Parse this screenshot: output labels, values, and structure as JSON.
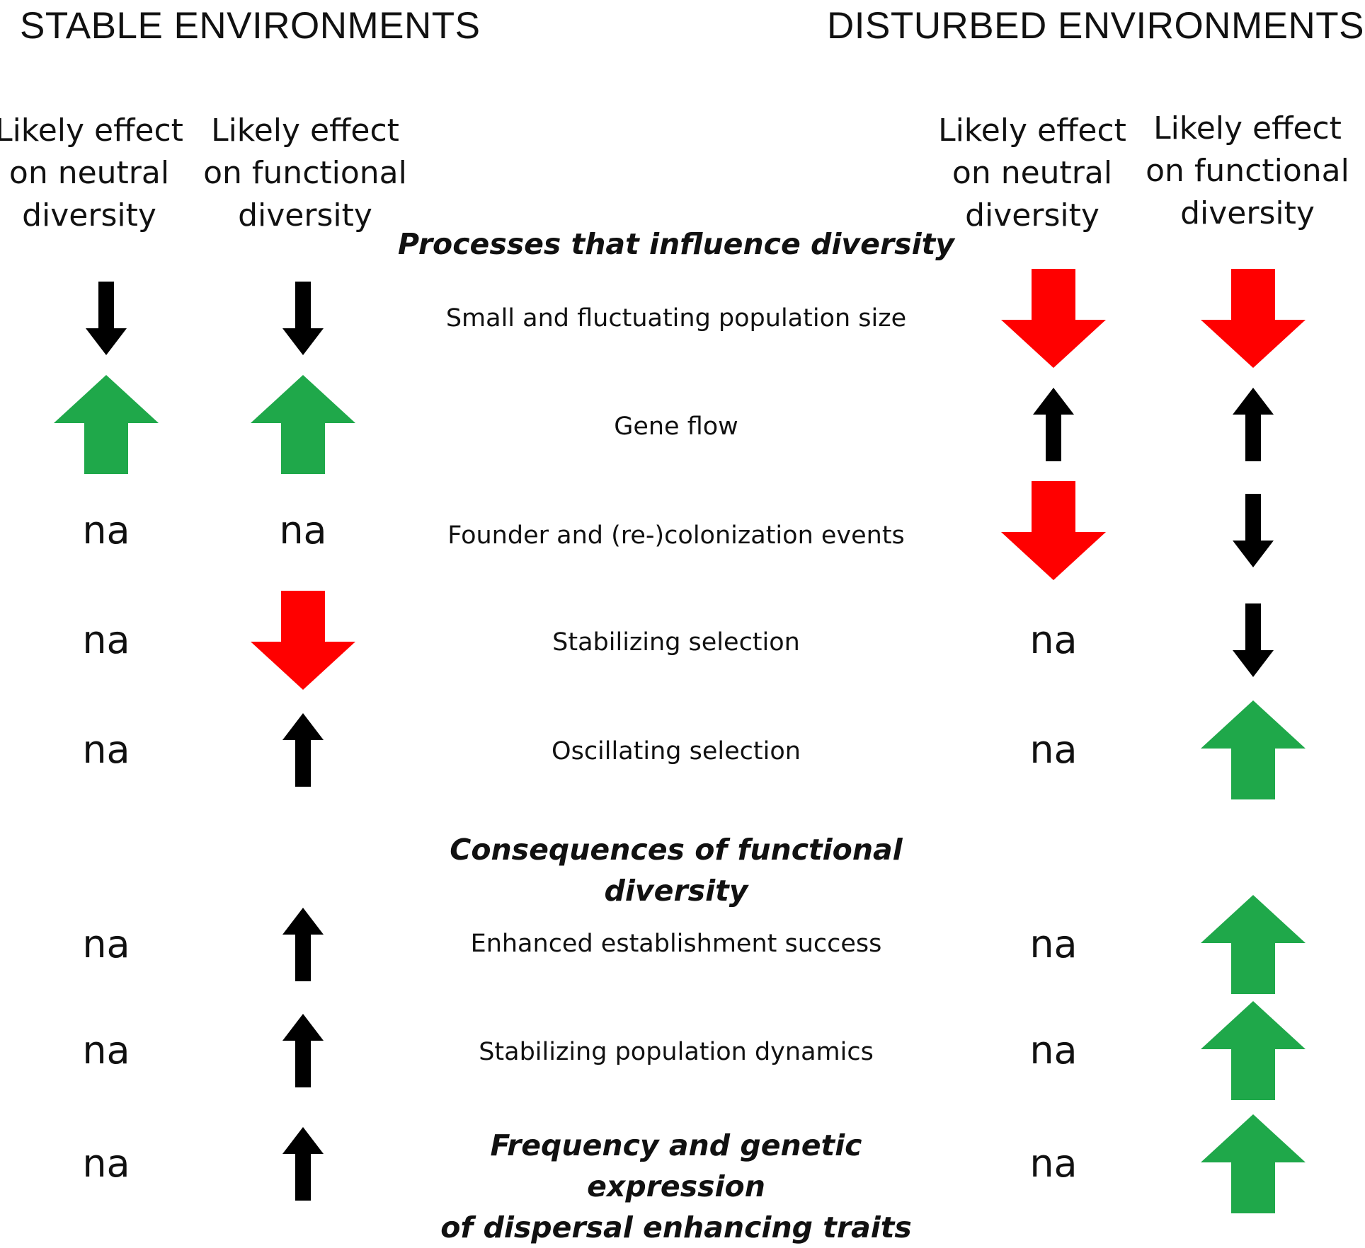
{
  "environments": {
    "stable": "STABLE ENVIRONMENTS",
    "disturbed": "DISTURBED ENVIRONMENTS"
  },
  "column_headers": {
    "neutral": "Likely effect\non neutral\ndiversity",
    "functional": "Likely effect\non functional\ndiversity"
  },
  "sections": {
    "processes": "Processes that influence diversity",
    "consequences": "Consequences of functional\ndiversity"
  },
  "rows": [
    {
      "label": "Small and fluctuating population size",
      "stable_neutral": "down-black",
      "stable_functional": "down-black",
      "disturbed_neutral": "down-red",
      "disturbed_functional": "down-red"
    },
    {
      "label": "Gene flow",
      "stable_neutral": "up-green",
      "stable_functional": "up-green",
      "disturbed_neutral": "up-black",
      "disturbed_functional": "up-black"
    },
    {
      "label": "Founder and (re-)colonization events",
      "stable_neutral": "na",
      "stable_functional": "na",
      "disturbed_neutral": "down-red",
      "disturbed_functional": "down-black"
    },
    {
      "label": "Stabilizing selection",
      "stable_neutral": "na",
      "stable_functional": "down-red",
      "disturbed_neutral": "na",
      "disturbed_functional": "down-black"
    },
    {
      "label": "Oscillating selection",
      "stable_neutral": "na",
      "stable_functional": "up-black",
      "disturbed_neutral": "na",
      "disturbed_functional": "up-green"
    },
    {
      "label": "Enhanced establishment success",
      "stable_neutral": "na",
      "stable_functional": "up-black",
      "disturbed_neutral": "na",
      "disturbed_functional": "up-green"
    },
    {
      "label": "Stabilizing population dynamics",
      "stable_neutral": "na",
      "stable_functional": "up-black",
      "disturbed_neutral": "na",
      "disturbed_functional": "up-green"
    },
    {
      "label": "Frequency and genetic expression\nof dispersal enhancing traits",
      "stable_neutral": "na",
      "stable_functional": "up-black",
      "disturbed_neutral": "na",
      "disturbed_functional": "up-green"
    }
  ],
  "na_label": "na",
  "colors": {
    "red": "#ff0000",
    "green": "#1fa84a",
    "black": "#000000"
  },
  "icons": {
    "down-black": "down-arrow-black-icon",
    "up-black": "up-arrow-black-icon",
    "down-red": "down-arrow-red-icon",
    "up-green": "up-arrow-green-icon"
  }
}
